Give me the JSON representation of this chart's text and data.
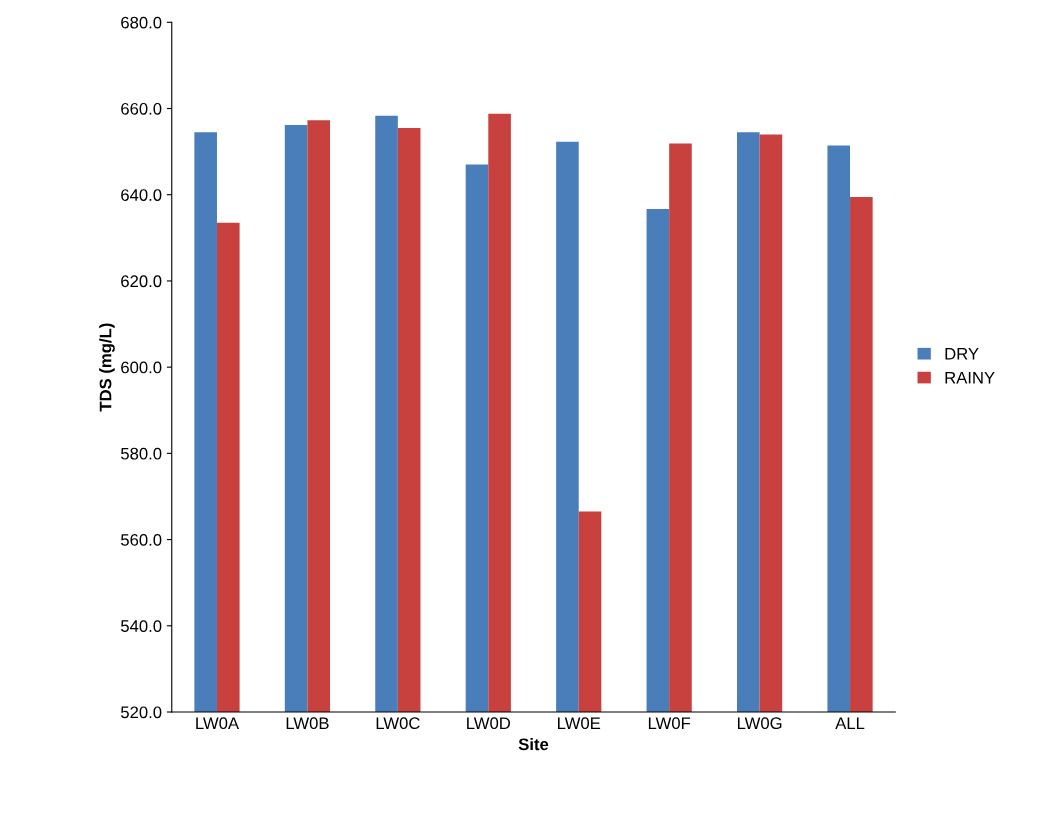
{
  "chart_data": {
    "type": "bar",
    "xlabel": "Site",
    "ylabel": "TDS (mg/L)",
    "categories": [
      "LW0A",
      "LW0B",
      "LW0C",
      "LW0D",
      "LW0E",
      "LW0F",
      "LW0G",
      "ALL"
    ],
    "series": [
      {
        "name": "DRY",
        "color": "#4a7ebb",
        "values": [
          654.5,
          656.2,
          658.3,
          647.0,
          652.3,
          636.7,
          654.5,
          651.4
        ]
      },
      {
        "name": "RAINY",
        "color": "#c8413e",
        "values": [
          633.5,
          657.3,
          655.5,
          658.8,
          566.5,
          651.9,
          654.0,
          639.5
        ]
      }
    ],
    "ylim": [
      520,
      680
    ],
    "yticks": [
      {
        "value": 520,
        "label": "520.0"
      },
      {
        "value": 540,
        "label": "540.0"
      },
      {
        "value": 560,
        "label": "560.0"
      },
      {
        "value": 580,
        "label": "580.0"
      },
      {
        "value": 600,
        "label": "600.0"
      },
      {
        "value": 620,
        "label": "620.0"
      },
      {
        "value": 640,
        "label": "640.0"
      },
      {
        "value": 660,
        "label": "660.0"
      },
      {
        "value": 680,
        "label": "680.0"
      }
    ],
    "grid": false,
    "legend": "right"
  }
}
